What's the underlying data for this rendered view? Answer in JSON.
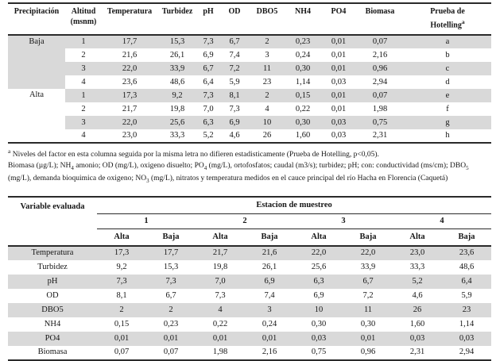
{
  "colors": {
    "row_shade": "#d9d9d9",
    "border": "#2a2a2a",
    "text": "#161616",
    "background": "#ffffff"
  },
  "table1": {
    "columns": [
      "Precipitación",
      "Altitud (msnm)",
      "Temperatura",
      "Turbidez",
      "pH",
      "OD",
      "DBO5",
      "NH4",
      "PO4",
      "Biomasa"
    ],
    "last_column": {
      "label": "Prueba de Hotelling",
      "sup": "a"
    },
    "groups": [
      {
        "label": "Baja",
        "shaded": true,
        "rows": [
          [
            "1",
            "17,7",
            "15,3",
            "7,3",
            "6,7",
            "2",
            "0,23",
            "0,01",
            "0,07",
            "a"
          ],
          [
            "2",
            "21,6",
            "26,1",
            "6,9",
            "7,4",
            "3",
            "0,24",
            "0,01",
            "2,16",
            "b"
          ],
          [
            "3",
            "22,0",
            "33,9",
            "6,7",
            "7,2",
            "11",
            "0,30",
            "0,01",
            "0,96",
            "c"
          ],
          [
            "4",
            "23,6",
            "48,6",
            "6,4",
            "5,9",
            "23",
            "1,14",
            "0,03",
            "2,94",
            "d"
          ]
        ]
      },
      {
        "label": "Alta",
        "shaded": false,
        "rows": [
          [
            "1",
            "17,3",
            "9,2",
            "7,3",
            "8,1",
            "2",
            "0,15",
            "0,01",
            "0,07",
            "e"
          ],
          [
            "2",
            "21,7",
            "19,8",
            "7,0",
            "7,3",
            "4",
            "0,22",
            "0,01",
            "1,98",
            "f"
          ],
          [
            "3",
            "22,0",
            "25,6",
            "6,3",
            "6,9",
            "10",
            "0,30",
            "0,03",
            "0,75",
            "g"
          ],
          [
            "4",
            "23,0",
            "33,3",
            "5,2",
            "4,6",
            "26",
            "1,60",
            "0,03",
            "2,31",
            "h"
          ]
        ]
      }
    ]
  },
  "footnote": {
    "marker": "a",
    "line1": " Niveles del factor en esta columna seguida por la misma letra no difieren estadisticamente (Prueba de Hotelling, p<0,05).",
    "segments": [
      {
        "text": "Biomasa (µg/L); NH"
      },
      {
        "sub": "4"
      },
      {
        "text": " amonio; OD (mg/L), oxigeno disuelto; PO"
      },
      {
        "sub": "4"
      },
      {
        "text": " (mg/L), ortofosfatos; caudal (m3/s); turbidez; pH; con: conductividad (ms/cm); DBO"
      },
      {
        "sub": "5"
      },
      {
        "text": " (mg/L), demanda bioquimica de oxigeno; NO"
      },
      {
        "sub": "3"
      },
      {
        "text": " (mg/L), nitratos y temperatura medidos en el cauce principal del río Hacha en Florencia (Caquetá)"
      }
    ]
  },
  "table2": {
    "row_header": "Variable evaluada",
    "spanner": "Estacion de muestreo",
    "stations": [
      "1",
      "2",
      "3",
      "4"
    ],
    "subcolumns": [
      "Alta",
      "Baja"
    ],
    "rows": [
      {
        "variable": "Temperatura",
        "values": [
          "17,3",
          "17,7",
          "21,7",
          "21,6",
          "22,0",
          "22,0",
          "23,0",
          "23,6"
        ]
      },
      {
        "variable": "Turbidez",
        "values": [
          "9,2",
          "15,3",
          "19,8",
          "26,1",
          "25,6",
          "33,9",
          "33,3",
          "48,6"
        ]
      },
      {
        "variable": "pH",
        "values": [
          "7,3",
          "7,3",
          "7,0",
          "6,9",
          "6,3",
          "6,7",
          "5,2",
          "6,4"
        ]
      },
      {
        "variable": "OD",
        "values": [
          "8,1",
          "6,7",
          "7,3",
          "7,4",
          "6,9",
          "7,2",
          "4,6",
          "5,9"
        ]
      },
      {
        "variable": "DBO5",
        "values": [
          "2",
          "2",
          "4",
          "3",
          "10",
          "11",
          "26",
          "23"
        ]
      },
      {
        "variable": "NH4",
        "values": [
          "0,15",
          "0,23",
          "0,22",
          "0,24",
          "0,30",
          "0,30",
          "1,60",
          "1,14"
        ]
      },
      {
        "variable": "PO4",
        "values": [
          "0,01",
          "0,01",
          "0,01",
          "0,01",
          "0,03",
          "0,01",
          "0,03",
          "0,03"
        ]
      },
      {
        "variable": "Biomasa",
        "values": [
          "0,07",
          "0,07",
          "1,98",
          "2,16",
          "0,75",
          "0,96",
          "2,31",
          "2,94"
        ]
      }
    ]
  }
}
